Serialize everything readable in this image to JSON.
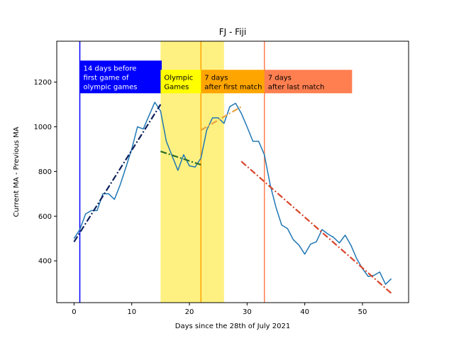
{
  "chart_data": {
    "type": "line",
    "title": "FJ - Fiji",
    "xlabel": "Days since the 28th of July 2021",
    "ylabel": "Current MA - Previous MA",
    "xlim": [
      -3,
      58
    ],
    "ylim": [
      213,
      1383
    ],
    "x_ticks": [
      0,
      10,
      20,
      30,
      40,
      50
    ],
    "y_ticks": [
      400,
      600,
      800,
      1000,
      1200
    ],
    "grid": false,
    "series": [
      {
        "color": "#1f77b4",
        "x": [
          0,
          1,
          2,
          3,
          4,
          5,
          6,
          7,
          8,
          9,
          10,
          11,
          12,
          13,
          14,
          15,
          16,
          17,
          18,
          19,
          20,
          21,
          22,
          23,
          24,
          25,
          26,
          27,
          28,
          29,
          30,
          31,
          32,
          33,
          34,
          35,
          36,
          37,
          38,
          39,
          40,
          41,
          42,
          43,
          44,
          45,
          46,
          47,
          48,
          49,
          50,
          51,
          52,
          53,
          54,
          55
        ],
        "y": [
          500,
          540,
          610,
          625,
          625,
          700,
          700,
          675,
          740,
          820,
          900,
          1000,
          990,
          1050,
          1110,
          1070,
          935,
          870,
          805,
          875,
          825,
          820,
          860,
          985,
          1040,
          1040,
          1015,
          1090,
          1105,
          1060,
          1000,
          935,
          935,
          875,
          740,
          640,
          560,
          545,
          495,
          470,
          430,
          475,
          485,
          540,
          520,
          505,
          480,
          515,
          470,
          410,
          365,
          330,
          335,
          350,
          295,
          320
        ]
      }
    ],
    "trend_lines": [
      {
        "color": "#0d1f5c",
        "x": [
          0,
          15
        ],
        "y": [
          485,
          1100
        ]
      },
      {
        "color": "#2a6e2a",
        "x": [
          15,
          22
        ],
        "y": [
          890,
          830
        ]
      },
      {
        "color": "#e8a33d",
        "x": [
          22,
          29
        ],
        "y": [
          985,
          1090
        ]
      },
      {
        "color": "#d9452b",
        "x": [
          29,
          55
        ],
        "y": [
          845,
          255
        ]
      }
    ],
    "vertical_lines": [
      {
        "x": 1,
        "color": "#0000ff"
      },
      {
        "x": 22,
        "color": "#ffa500"
      },
      {
        "x": 33,
        "color": "#ff7f50"
      }
    ],
    "shaded_regions": [
      {
        "x0": 15,
        "x1": 26,
        "color": "#fff07a"
      }
    ],
    "annotations": [
      {
        "lines": [
          "14 days before",
          "first game of",
          "olympic games"
        ],
        "x": 1,
        "y": 1150,
        "bg": "#0000ff",
        "color": "#ffffff",
        "width_days": 14.2
      },
      {
        "lines": [
          "Olympic",
          "Games"
        ],
        "x": 15,
        "y": 1150,
        "bg": "#ffff00",
        "color": "#000000",
        "width_days": 7.3
      },
      {
        "lines": [
          "7 days",
          "after first match"
        ],
        "x": 22,
        "y": 1150,
        "bg": "#ffa500",
        "color": "#000000",
        "width_days": 11.2
      },
      {
        "lines": [
          "7 days",
          "after last match"
        ],
        "x": 33,
        "y": 1150,
        "bg": "#ff7f50",
        "color": "#000000",
        "width_days": 15.2
      }
    ]
  }
}
